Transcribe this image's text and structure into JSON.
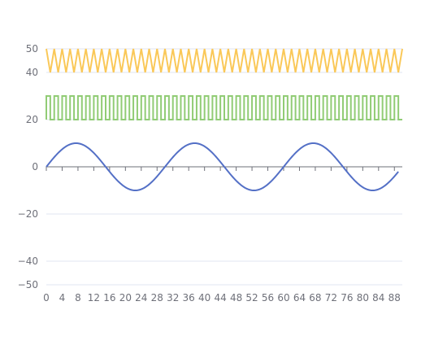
{
  "chart_data": {
    "type": "line",
    "title": "",
    "xlabel": "",
    "ylabel": "",
    "grid": true,
    "legend": "none",
    "x": {
      "min": 0,
      "max": 90,
      "ticks": [
        0,
        4,
        8,
        12,
        16,
        20,
        24,
        28,
        32,
        36,
        40,
        44,
        48,
        52,
        56,
        60,
        64,
        68,
        72,
        76,
        80,
        84,
        88
      ]
    },
    "y": {
      "min": -50,
      "max": 50,
      "ticks": [
        50,
        40,
        20,
        0,
        -20,
        -40,
        -50
      ],
      "tick_labels": [
        "50",
        "40",
        "20",
        "0",
        "−20",
        "−40",
        "−50"
      ]
    },
    "series": [
      {
        "key": "triangle",
        "color": "#fac858",
        "kind": "zigzag",
        "x_start": 0,
        "x_end": 90,
        "step": 1,
        "low": 40,
        "high": 50,
        "starts_high": true
      },
      {
        "key": "square",
        "color": "#91cc75",
        "kind": "square",
        "x_start": 0,
        "x_end": 90,
        "step": 1,
        "low": 20,
        "high": 30,
        "starts_high": true
      },
      {
        "key": "sine",
        "color": "#5470c6",
        "kind": "sine",
        "x_start": 0,
        "x_end": 89,
        "amplitude": 10,
        "period": 30
      }
    ]
  }
}
